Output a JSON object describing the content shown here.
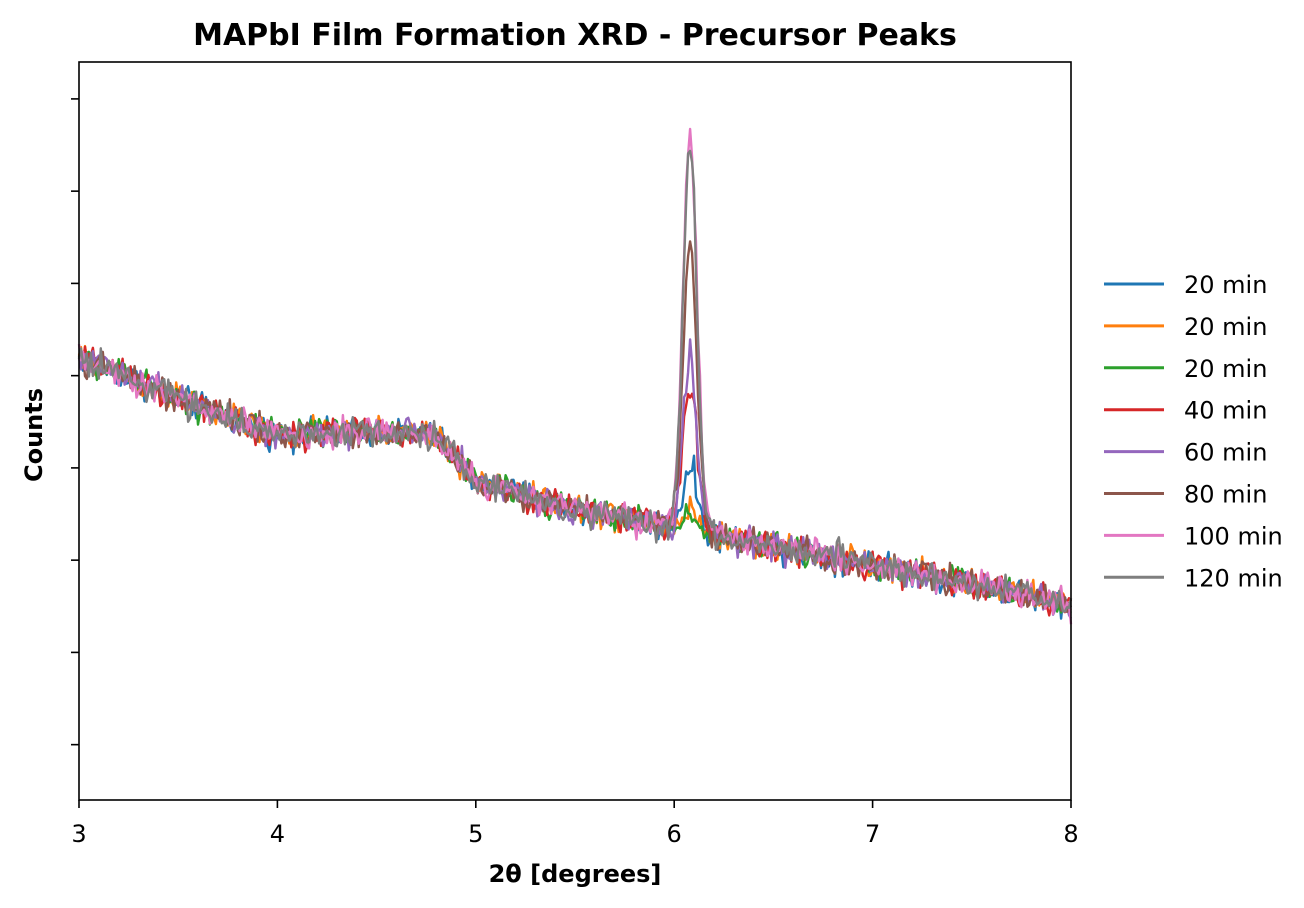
{
  "chart_data": {
    "type": "line",
    "title": "MAPbI Film Formation XRD - Precursor Peaks",
    "xlabel": "2θ [degrees]",
    "ylabel": "Counts",
    "xlim": [
      3,
      8
    ],
    "ylim": [
      0,
      8
    ],
    "x_ticks": [
      3,
      4,
      5,
      6,
      7,
      8
    ],
    "x_tick_labels": [
      "3",
      "4",
      "5",
      "6",
      "7",
      "8"
    ],
    "y_ticks": [
      0.6,
      1.6,
      2.6,
      3.6,
      4.6,
      5.6,
      6.6,
      7.6
    ],
    "y_tick_labels_shown": false,
    "grid": false,
    "legend_position": "right, outside plot",
    "background_trend": {
      "x": [
        3.0,
        3.5,
        4.0,
        4.5,
        4.8,
        5.0,
        5.5,
        6.0,
        6.5,
        7.0,
        7.5,
        8.0
      ],
      "y": [
        4.8,
        4.35,
        3.95,
        4.0,
        3.95,
        3.45,
        3.15,
        2.95,
        2.75,
        2.55,
        2.35,
        2.1
      ]
    },
    "noise_amplitude": 0.12,
    "peak_center": 6.08,
    "peak_width": 0.035,
    "series": [
      {
        "name": "20 min",
        "color": "#1f77b4",
        "peak_height": 0.7
      },
      {
        "name": "20 min",
        "color": "#ff7f0e",
        "peak_height": 0.25
      },
      {
        "name": "20 min",
        "color": "#2ca02c",
        "peak_height": 0.2
      },
      {
        "name": "40 min",
        "color": "#d62728",
        "peak_height": 1.6
      },
      {
        "name": "60 min",
        "color": "#9467bd",
        "peak_height": 1.9
      },
      {
        "name": "80 min",
        "color": "#8c564b",
        "peak_height": 3.1
      },
      {
        "name": "100 min",
        "color": "#e377c2",
        "peak_height": 4.3
      },
      {
        "name": "120 min",
        "color": "#7f7f7f",
        "peak_height": 4.2
      }
    ]
  }
}
